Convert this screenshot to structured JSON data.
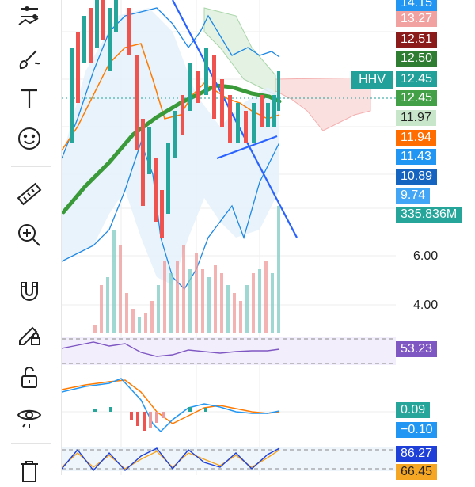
{
  "tools": [
    {
      "name": "indicators-tool",
      "icon": "lines-nodes-icon"
    },
    {
      "name": "brush-tool",
      "icon": "brush-icon"
    },
    {
      "name": "text-tool",
      "icon": "text-icon"
    },
    {
      "name": "emoji-tool",
      "icon": "smiley-icon"
    },
    {
      "name": "ruler-tool",
      "icon": "ruler-icon"
    },
    {
      "name": "zoom-tool",
      "icon": "zoom-in-icon"
    },
    {
      "name": "magnet-tool",
      "icon": "magnet-icon"
    },
    {
      "name": "lock-drawing-tool",
      "icon": "pencil-lock-icon"
    },
    {
      "name": "unlock-tool",
      "icon": "unlock-icon"
    },
    {
      "name": "visibility-tool",
      "icon": "eye-icon"
    },
    {
      "name": "delete-tool",
      "icon": "trash-icon"
    }
  ],
  "hhv_label": "HHV",
  "price_tags": [
    {
      "text": "14.15",
      "color": "#2196f3"
    },
    {
      "text": "13.27",
      "color": "#f2a1a1"
    },
    {
      "text": "12.51",
      "color": "#8b1a1a"
    },
    {
      "text": "12.50",
      "color": "#2e7d32"
    },
    {
      "text": "12.45",
      "color": "#22a19a"
    },
    {
      "text": "12.45",
      "color": "#43a047"
    },
    {
      "text": "11.97",
      "color": "#c8e6c9",
      "dark": true
    },
    {
      "text": "11.94",
      "color": "#ff6d00"
    },
    {
      "text": "11.43",
      "color": "#2196f3"
    },
    {
      "text": "10.89",
      "color": "#1565c0"
    },
    {
      "text": "9.74",
      "color": "#42a5f5"
    },
    {
      "text": "335.836M",
      "color": "#26a69a"
    }
  ],
  "axis_ticks": [
    "6.00",
    "4.00"
  ],
  "indicator_tags": [
    {
      "text": "53.23",
      "color": "#7e57c2"
    },
    {
      "text": "0.09",
      "color": "#26a69a"
    },
    {
      "text": "−0.10",
      "color": "#2196f3"
    },
    {
      "text": "86.27",
      "color": "#1e40d8"
    },
    {
      "text": "66.45",
      "color": "#f5a623",
      "dark": true
    }
  ]
}
